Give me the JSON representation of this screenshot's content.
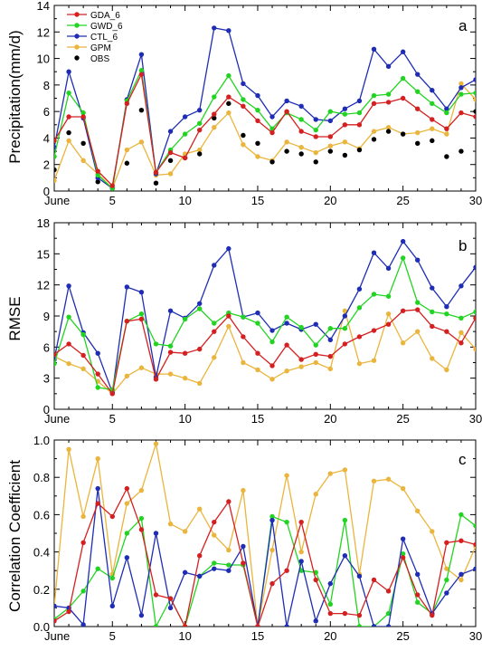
{
  "chart_data": [
    {
      "type": "line",
      "panel_label": "a",
      "ylabel": "Precipitation(mm/d)",
      "xlim": [
        1,
        30
      ],
      "ylim": [
        0,
        14
      ],
      "x_ticks": [
        1,
        5,
        10,
        15,
        20,
        25,
        30
      ],
      "x_tick_labels": [
        "June",
        "5",
        "10",
        "15",
        "20",
        "25",
        "30"
      ],
      "y_ticks": [
        0,
        2,
        4,
        6,
        8,
        10,
        12,
        14
      ],
      "x": [
        1,
        2,
        3,
        4,
        5,
        6,
        7,
        8,
        9,
        10,
        11,
        12,
        13,
        14,
        15,
        16,
        17,
        18,
        19,
        20,
        21,
        22,
        23,
        24,
        25,
        26,
        27,
        28,
        29,
        30
      ],
      "legend": {
        "placement": "top-left",
        "entries": [
          "GDA_6",
          "GWD_6",
          "CTL_6",
          "GPM",
          "OBS"
        ]
      },
      "series": [
        {
          "name": "GDA_6",
          "color": "#d42020",
          "style": "line-marker",
          "values": [
            3.8,
            5.6,
            5.6,
            1.5,
            0.4,
            6.6,
            8.8,
            1.4,
            2.9,
            2.5,
            4.6,
            5.8,
            7.1,
            6.4,
            5.3,
            4.4,
            6.0,
            4.5,
            4.1,
            4.1,
            5.0,
            5.0,
            6.6,
            6.7,
            7.0,
            6.2,
            5.4,
            4.7,
            5.9,
            5.6
          ]
        },
        {
          "name": "GWD_6",
          "color": "#22d422",
          "style": "line-marker",
          "values": [
            2.6,
            7.4,
            5.9,
            1.2,
            0.2,
            6.8,
            9.1,
            1.4,
            3.1,
            4.3,
            5.1,
            7.1,
            8.7,
            6.9,
            6.1,
            4.7,
            5.9,
            5.4,
            4.6,
            6.0,
            5.8,
            5.9,
            7.2,
            7.3,
            8.5,
            7.5,
            6.6,
            5.9,
            7.3,
            7.4
          ]
        },
        {
          "name": "CTL_6",
          "color": "#1e2db4",
          "style": "line-marker",
          "values": [
            3.3,
            9.0,
            5.5,
            1.0,
            0.2,
            6.9,
            10.3,
            1.3,
            4.5,
            5.6,
            6.1,
            12.3,
            12.1,
            8.1,
            7.2,
            5.6,
            6.8,
            6.4,
            5.4,
            5.3,
            6.2,
            6.8,
            10.7,
            9.4,
            10.5,
            8.8,
            7.6,
            6.2,
            7.8,
            8.4
          ]
        },
        {
          "name": "GPM",
          "color": "#eab53d",
          "style": "line-marker",
          "values": [
            0.8,
            3.8,
            2.3,
            1.3,
            0.2,
            3.1,
            3.7,
            1.2,
            1.3,
            2.8,
            3.1,
            4.8,
            5.9,
            3.5,
            2.6,
            2.3,
            3.7,
            3.3,
            2.9,
            3.4,
            3.7,
            3.2,
            4.5,
            4.8,
            4.3,
            4.4,
            4.7,
            4.3,
            8.1,
            6.9
          ]
        },
        {
          "name": "OBS",
          "color": "#000000",
          "style": "marker",
          "values": [
            1.6,
            4.4,
            3.6,
            0.7,
            0.2,
            2.1,
            6.1,
            0.6,
            2.3,
            2.5,
            2.8,
            5.5,
            6.6,
            4.2,
            3.6,
            2.2,
            3.0,
            2.8,
            2.2,
            3.0,
            2.7,
            3.1,
            3.9,
            4.5,
            4.3,
            3.6,
            3.8,
            2.6,
            3.0,
            6.0
          ]
        }
      ]
    },
    {
      "type": "line",
      "panel_label": "b",
      "ylabel": "RMSE",
      "xlim": [
        1,
        30
      ],
      "ylim": [
        0,
        18
      ],
      "x_ticks": [
        1,
        5,
        10,
        15,
        20,
        25,
        30
      ],
      "x_tick_labels": [
        "June",
        "5",
        "10",
        "15",
        "20",
        "25",
        "30"
      ],
      "y_ticks": [
        0,
        3,
        6,
        9,
        12,
        15,
        18
      ],
      "x": [
        1,
        2,
        3,
        4,
        5,
        6,
        7,
        8,
        9,
        10,
        11,
        12,
        13,
        14,
        15,
        16,
        17,
        18,
        19,
        20,
        21,
        22,
        23,
        24,
        25,
        26,
        27,
        28,
        29,
        30
      ],
      "series": [
        {
          "name": "GDA_6",
          "color": "#d42020",
          "style": "line-marker",
          "values": [
            5.3,
            6.3,
            5.2,
            3.4,
            1.5,
            8.5,
            8.7,
            2.9,
            5.5,
            5.4,
            5.8,
            7.5,
            9.0,
            7.0,
            5.4,
            4.2,
            6.2,
            4.8,
            5.3,
            5.1,
            6.3,
            7.0,
            7.6,
            8.2,
            9.5,
            9.6,
            8.0,
            7.5,
            6.4,
            8.8
          ]
        },
        {
          "name": "GWD_6",
          "color": "#22d422",
          "style": "line-marker",
          "values": [
            4.4,
            8.9,
            7.2,
            2.1,
            1.9,
            8.5,
            9.2,
            6.3,
            6.1,
            8.7,
            9.7,
            8.3,
            9.3,
            8.9,
            8.3,
            6.5,
            8.9,
            7.9,
            6.2,
            7.8,
            7.8,
            9.8,
            11.1,
            10.9,
            14.6,
            10.3,
            9.4,
            9.2,
            8.8,
            9.4
          ]
        },
        {
          "name": "CTL_6",
          "color": "#1e2db4",
          "style": "line-marker",
          "values": [
            4.8,
            11.9,
            7.4,
            5.4,
            1.6,
            11.8,
            11.3,
            3.1,
            9.5,
            8.8,
            10.2,
            13.9,
            15.5,
            8.9,
            9.3,
            7.6,
            8.3,
            7.7,
            8.2,
            6.7,
            9.0,
            11.6,
            15.1,
            13.6,
            16.2,
            14.4,
            11.7,
            9.9,
            11.9,
            13.7
          ]
        },
        {
          "name": "GPM",
          "color": "#eab53d",
          "style": "line-marker",
          "values": [
            5.1,
            4.4,
            3.9,
            2.7,
            1.5,
            3.2,
            4.0,
            3.4,
            3.4,
            3.0,
            2.5,
            5.0,
            8.0,
            4.5,
            3.8,
            2.9,
            3.7,
            4.1,
            4.5,
            3.9,
            9.5,
            4.4,
            4.7,
            9.2,
            6.4,
            7.5,
            4.9,
            3.8,
            7.4,
            5.8
          ]
        }
      ]
    },
    {
      "type": "line",
      "panel_label": "c",
      "ylabel": "Correlation Coefficient",
      "xlim": [
        1,
        30
      ],
      "ylim": [
        0,
        1.0
      ],
      "x_ticks": [
        1,
        5,
        10,
        15,
        20,
        25,
        30
      ],
      "x_tick_labels": [
        "June",
        "5",
        "10",
        "15",
        "20",
        "25",
        "30"
      ],
      "y_ticks": [
        0,
        0.2,
        0.4,
        0.6,
        0.8,
        1.0
      ],
      "y_tick_labels": [
        "0.0",
        "0.2",
        "0.4",
        "0.6",
        "0.8",
        "1.0"
      ],
      "x": [
        1,
        2,
        3,
        4,
        5,
        6,
        7,
        8,
        9,
        10,
        11,
        12,
        13,
        14,
        15,
        16,
        17,
        18,
        19,
        20,
        21,
        22,
        23,
        24,
        25,
        26,
        27,
        28,
        29,
        30
      ],
      "series": [
        {
          "name": "GDA_6",
          "color": "#d42020",
          "style": "line-marker",
          "values": [
            0.03,
            0.08,
            0.45,
            0.66,
            0.59,
            0.74,
            0.52,
            0.17,
            0.15,
            0.0,
            0.38,
            0.56,
            0.67,
            0.34,
            0.0,
            0.23,
            0.3,
            0.56,
            0.25,
            0.07,
            0.07,
            0.06,
            0.25,
            0.19,
            0.37,
            0.17,
            0.06,
            0.45,
            0.46,
            0.44
          ]
        },
        {
          "name": "GWD_6",
          "color": "#22d422",
          "style": "line-marker",
          "values": [
            0.04,
            0.1,
            0.19,
            0.31,
            0.26,
            0.5,
            0.58,
            0.0,
            0.15,
            0.0,
            0.27,
            0.34,
            0.33,
            0.33,
            0.0,
            0.59,
            0.56,
            0.3,
            0.29,
            0.12,
            0.57,
            0.0,
            0.0,
            0.07,
            0.39,
            0.13,
            0.07,
            0.25,
            0.6,
            0.54
          ]
        },
        {
          "name": "CTL_6",
          "color": "#1e2db4",
          "style": "line-marker",
          "values": [
            0.11,
            0.1,
            0.01,
            0.74,
            0.11,
            0.37,
            0.06,
            0.5,
            0.1,
            0.29,
            0.27,
            0.31,
            0.3,
            0.43,
            0.0,
            0.57,
            0.0,
            0.35,
            0.03,
            0.23,
            0.38,
            0.27,
            0.0,
            0.0,
            0.47,
            0.28,
            0.07,
            0.18,
            0.28,
            0.31
          ]
        },
        {
          "name": "GPM",
          "color": "#eab53d",
          "style": "line-marker",
          "values": [
            0.11,
            0.95,
            0.59,
            0.9,
            0.28,
            0.66,
            0.73,
            0.98,
            0.55,
            0.51,
            0.63,
            0.49,
            0.41,
            0.73,
            0.0,
            0.41,
            0.81,
            0.4,
            0.71,
            0.82,
            0.84,
            0.28,
            0.78,
            0.79,
            0.74,
            0.62,
            0.51,
            0.31,
            0.25,
            0.43
          ]
        }
      ]
    }
  ]
}
